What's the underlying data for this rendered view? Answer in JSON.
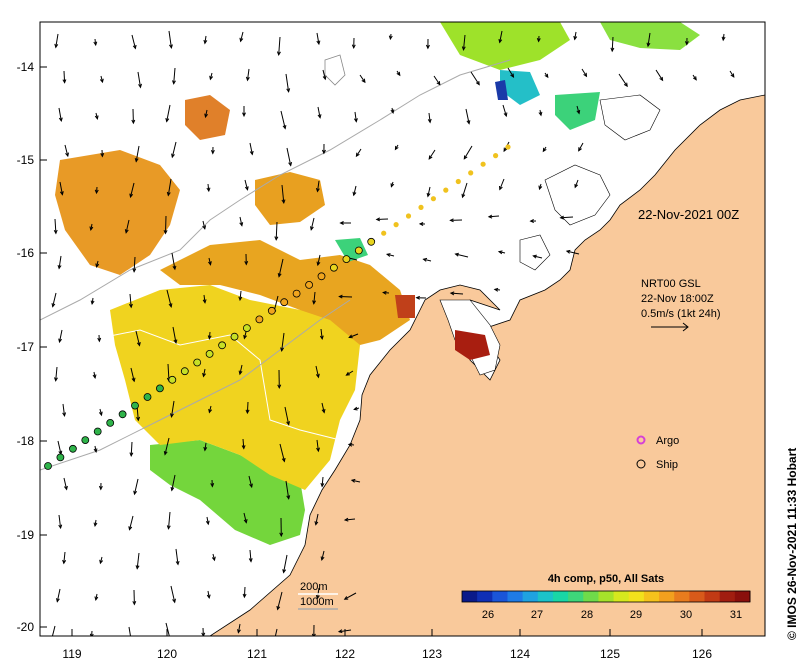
{
  "map": {
    "y_ticks": [
      "-14",
      "-15",
      "-16",
      "-17",
      "-18",
      "-19",
      "-20"
    ],
    "x_ticks": [
      "119",
      "120",
      "121",
      "122",
      "123",
      "124",
      "125",
      "126"
    ]
  },
  "annotations": {
    "date_label": "22-Nov-2021 00Z",
    "vector_lines": [
      "NRT00 GSL",
      "22-Nov 18:00Z",
      "0.5m/s (1kt 24h)"
    ],
    "isobath_lines": [
      "200m",
      "1000m"
    ]
  },
  "legend": {
    "argo_label": "Argo",
    "ship_label": "Ship",
    "argo_color": "#d640d6"
  },
  "colorbar": {
    "title": "4h comp, p50, All Sats",
    "ticks": [
      "26",
      "27",
      "28",
      "29",
      "30",
      "31"
    ]
  },
  "credit": "© IMOS 26-Nov-2021 11:33 Hobart",
  "colors": {
    "land": "#f9c99b",
    "ocean": "#ffffff"
  },
  "cbar": {
    "colors": [
      "#0a1a8a",
      "#0f2fb5",
      "#1a55d9",
      "#1f7be6",
      "#1fa2e0",
      "#1bc2c9",
      "#19d6a6",
      "#3ed67a",
      "#6fdb4a",
      "#a6e22a",
      "#d6e81e",
      "#f2e11c",
      "#f5c21c",
      "#f2a01e",
      "#e87c1e",
      "#d85a1a",
      "#c23a14",
      "#a11d10",
      "#8a0f0c"
    ]
  }
}
